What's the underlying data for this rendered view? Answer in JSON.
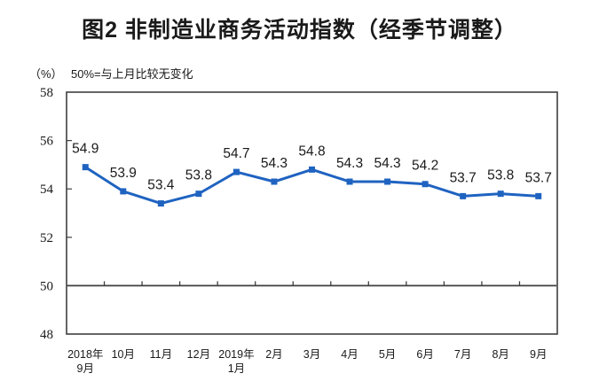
{
  "chart_data": {
    "type": "line",
    "title": "图2 非制造业商务活动指数（经季节调整）",
    "unit": "（%）",
    "subtitle": "50%=与上月比较无变化",
    "categories": [
      "2018年\n9月",
      "10月",
      "11月",
      "12月",
      "2019年\n1月",
      "2月",
      "3月",
      "4月",
      "5月",
      "6月",
      "7月",
      "8月",
      "9月"
    ],
    "values": [
      54.9,
      53.9,
      53.4,
      53.8,
      54.7,
      54.3,
      54.8,
      54.3,
      54.3,
      54.2,
      53.7,
      53.8,
      53.7
    ],
    "ylim": [
      48,
      58
    ],
    "yticks": [
      48,
      50,
      52,
      54,
      56,
      58
    ],
    "baseline": 50,
    "grid": false,
    "legend": "none",
    "data_labels": true,
    "marker": "square",
    "colors": {
      "line": "#1F63C1",
      "axis": "#3F3F3F",
      "text": "#1A1A1A"
    }
  }
}
